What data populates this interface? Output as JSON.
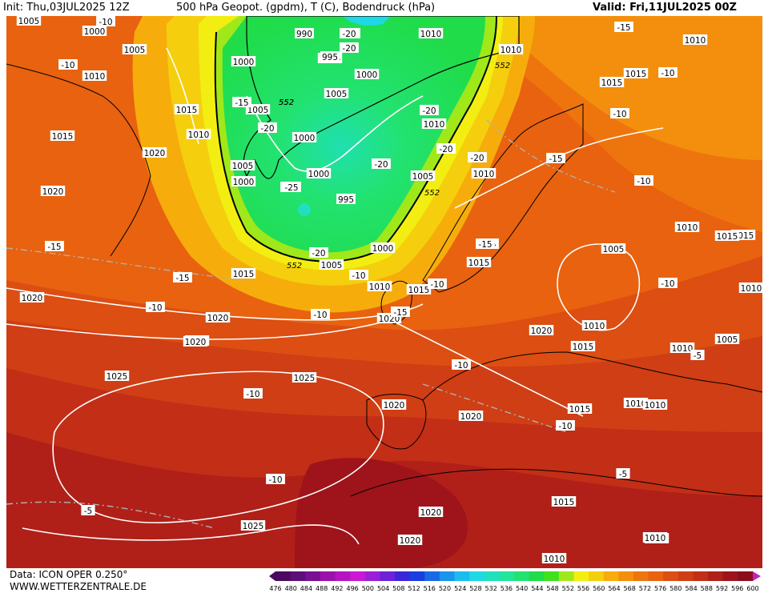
{
  "header": {
    "init": "Init: Thu,03JUL2025 12Z",
    "title": "500 hPa Geopot. (gpdm), T (C), Bodendruck (hPa)",
    "valid": "Valid: Fri,11JUL2025 00Z"
  },
  "footer": {
    "data_source": "Data: ICON OPER 0.250°",
    "website": "WWW.WETTERZENTRALE.DE"
  },
  "colorbar": {
    "ticks": [
      "476",
      "480",
      "484",
      "488",
      "492",
      "496",
      "500",
      "504",
      "508",
      "512",
      "516",
      "520",
      "524",
      "528",
      "532",
      "536",
      "540",
      "544",
      "548",
      "552",
      "556",
      "560",
      "564",
      "568",
      "572",
      "576",
      "580",
      "584",
      "588",
      "592",
      "596",
      "600"
    ],
    "colors": [
      "#4b0a5e",
      "#5e0e7a",
      "#7a0f94",
      "#9a12aa",
      "#b514c0",
      "#cc17d4",
      "#9b1ed8",
      "#6d22d9",
      "#3a26d9",
      "#1a3ee0",
      "#1a6ae6",
      "#1a94ec",
      "#1cbcef",
      "#1ed8e6",
      "#20e0c0",
      "#22e49a",
      "#22e270",
      "#20dc48",
      "#40e020",
      "#a0e81a",
      "#f2ee12",
      "#f5cf0e",
      "#f6ad0c",
      "#f38f0c",
      "#ee750e",
      "#e8620f",
      "#dc4e12",
      "#cf3e14",
      "#c22e16",
      "#b02018",
      "#9e141a",
      "#8c0e1e"
    ]
  },
  "map_labels": {
    "pressure": [
      "1005",
      "1000",
      "990",
      "1005",
      "1010",
      "1010",
      "1005",
      "1015",
      "1000",
      "995",
      "1010",
      "1000",
      "1005",
      "1010",
      "1015",
      "1010",
      "1015",
      "1020",
      "1000",
      "1005",
      "1000",
      "1000",
      "995",
      "1010",
      "1005",
      "1010",
      "1015",
      "1020",
      "1005",
      "1000",
      "1005",
      "1010",
      "1015",
      "1020",
      "1015",
      "1015",
      "1010",
      "1020",
      "1020",
      "1005",
      "1010",
      "1015",
      "1010",
      "1015",
      "1010",
      "1010",
      "1020",
      "1010",
      "1005",
      "1020",
      "1025",
      "1025",
      "1020",
      "1015",
      "1010",
      "1025",
      "1020",
      "1020",
      "1020",
      "1010",
      "1010",
      "1015",
      "1020",
      "1015",
      "1010"
    ],
    "temperature": [
      "-10",
      "-20",
      "-20",
      "-15",
      "-10",
      "-10",
      "-15",
      "-20",
      "-25",
      "-20",
      "-20",
      "-20",
      "-20",
      "-15",
      "-10",
      "-15",
      "-20",
      "-15",
      "-10",
      "-10",
      "-15",
      "-10",
      "-10",
      "-10",
      "-15",
      "-10",
      "-10",
      "-10",
      "-5",
      "-10",
      "-5",
      "-5",
      "-10",
      "-20",
      "-25",
      "-15"
    ],
    "geopotential": [
      "552",
      "552",
      "552",
      "552",
      "552"
    ]
  }
}
